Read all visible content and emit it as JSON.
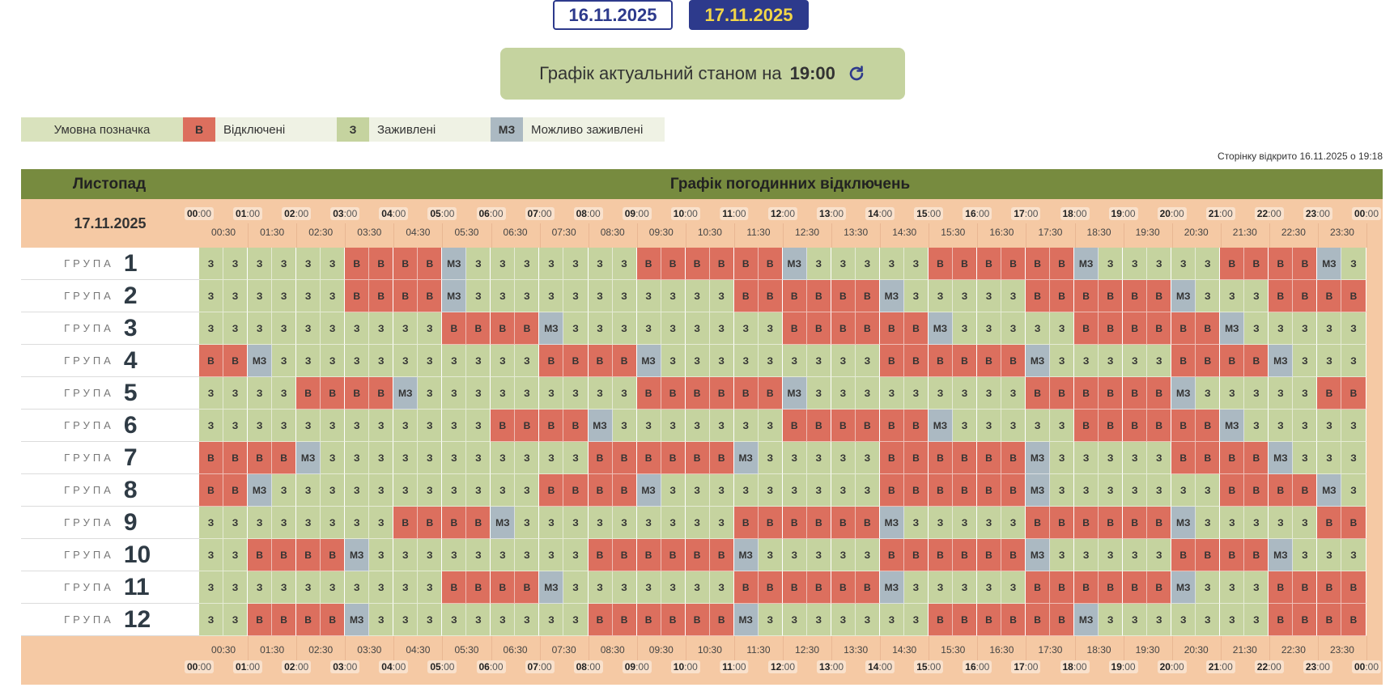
{
  "date_tabs": [
    {
      "label": "16.11.2025",
      "active": false
    },
    {
      "label": "17.11.2025",
      "active": true
    }
  ],
  "status": {
    "text": "Графік актуальний станом на",
    "time": "19:00",
    "icon": "refresh-icon"
  },
  "legend": {
    "title": "Умовна позначка",
    "items": [
      {
        "code": "В",
        "label": "Відключені",
        "color": "#dc6f5e"
      },
      {
        "code": "З",
        "label": "Заживлені",
        "color": "#c5d39f"
      },
      {
        "code": "МЗ",
        "label": "Можливо заживлені",
        "color": "#abb9c2"
      }
    ]
  },
  "opened_text": "Сторінку відкрито 16.11.2025 о 19:18",
  "schedule": {
    "month": "Листопад",
    "title": "Графік погодинних відключень",
    "date": "17.11.2025",
    "group_word": "ГРУПА",
    "hours": [
      "00",
      "01",
      "02",
      "03",
      "04",
      "05",
      "06",
      "07",
      "08",
      "09",
      "10",
      "11",
      "12",
      "13",
      "14",
      "15",
      "16",
      "17",
      "18",
      "19",
      "20",
      "21",
      "22",
      "23",
      "00"
    ],
    "halves": [
      "00:30",
      "01:30",
      "02:30",
      "03:30",
      "04:30",
      "05:30",
      "06:30",
      "07:30",
      "08:30",
      "09:30",
      "10:30",
      "11:30",
      "12:30",
      "13:30",
      "14:30",
      "15:30",
      "16:30",
      "17:30",
      "18:30",
      "19:30",
      "20:30",
      "21:30",
      "22:30",
      "23:30"
    ],
    "groups": [
      {
        "number": "1",
        "cells": [
          "З",
          "З",
          "З",
          "З",
          "З",
          "З",
          "В",
          "В",
          "В",
          "В",
          "МЗ",
          "З",
          "З",
          "З",
          "З",
          "З",
          "З",
          "З",
          "В",
          "В",
          "В",
          "В",
          "В",
          "В",
          "МЗ",
          "З",
          "З",
          "З",
          "З",
          "З",
          "В",
          "В",
          "В",
          "В",
          "В",
          "В",
          "МЗ",
          "З",
          "З",
          "З",
          "З",
          "З",
          "В",
          "В",
          "В",
          "В",
          "МЗ",
          "З"
        ]
      },
      {
        "number": "2",
        "cells": [
          "З",
          "З",
          "З",
          "З",
          "З",
          "З",
          "В",
          "В",
          "В",
          "В",
          "МЗ",
          "З",
          "З",
          "З",
          "З",
          "З",
          "З",
          "З",
          "З",
          "З",
          "З",
          "З",
          "В",
          "В",
          "В",
          "В",
          "В",
          "В",
          "МЗ",
          "З",
          "З",
          "З",
          "З",
          "З",
          "В",
          "В",
          "В",
          "В",
          "В",
          "В",
          "МЗ",
          "З",
          "З",
          "З",
          "В",
          "В",
          "В",
          "В"
        ]
      },
      {
        "number": "3",
        "cells": [
          "З",
          "З",
          "З",
          "З",
          "З",
          "З",
          "З",
          "З",
          "З",
          "З",
          "В",
          "В",
          "В",
          "В",
          "МЗ",
          "З",
          "З",
          "З",
          "З",
          "З",
          "З",
          "З",
          "З",
          "З",
          "В",
          "В",
          "В",
          "В",
          "В",
          "В",
          "МЗ",
          "З",
          "З",
          "З",
          "З",
          "З",
          "В",
          "В",
          "В",
          "В",
          "В",
          "В",
          "МЗ",
          "З",
          "З",
          "З",
          "З",
          "З"
        ]
      },
      {
        "number": "4",
        "cells": [
          "В",
          "В",
          "МЗ",
          "З",
          "З",
          "З",
          "З",
          "З",
          "З",
          "З",
          "З",
          "З",
          "З",
          "З",
          "В",
          "В",
          "В",
          "В",
          "МЗ",
          "З",
          "З",
          "З",
          "З",
          "З",
          "З",
          "З",
          "З",
          "З",
          "В",
          "В",
          "В",
          "В",
          "В",
          "В",
          "МЗ",
          "З",
          "З",
          "З",
          "З",
          "З",
          "В",
          "В",
          "В",
          "В",
          "МЗ",
          "З",
          "З",
          "З"
        ]
      },
      {
        "number": "5",
        "cells": [
          "З",
          "З",
          "З",
          "З",
          "В",
          "В",
          "В",
          "В",
          "МЗ",
          "З",
          "З",
          "З",
          "З",
          "З",
          "З",
          "З",
          "З",
          "З",
          "В",
          "В",
          "В",
          "В",
          "В",
          "В",
          "МЗ",
          "З",
          "З",
          "З",
          "З",
          "З",
          "З",
          "З",
          "З",
          "З",
          "В",
          "В",
          "В",
          "В",
          "В",
          "В",
          "МЗ",
          "З",
          "З",
          "З",
          "З",
          "З",
          "В",
          "В"
        ]
      },
      {
        "number": "6",
        "cells": [
          "З",
          "З",
          "З",
          "З",
          "З",
          "З",
          "З",
          "З",
          "З",
          "З",
          "З",
          "З",
          "В",
          "В",
          "В",
          "В",
          "МЗ",
          "З",
          "З",
          "З",
          "З",
          "З",
          "З",
          "З",
          "В",
          "В",
          "В",
          "В",
          "В",
          "В",
          "МЗ",
          "З",
          "З",
          "З",
          "З",
          "З",
          "В",
          "В",
          "В",
          "В",
          "В",
          "В",
          "МЗ",
          "З",
          "З",
          "З",
          "З",
          "З"
        ]
      },
      {
        "number": "7",
        "cells": [
          "В",
          "В",
          "В",
          "В",
          "МЗ",
          "З",
          "З",
          "З",
          "З",
          "З",
          "З",
          "З",
          "З",
          "З",
          "З",
          "З",
          "В",
          "В",
          "В",
          "В",
          "В",
          "В",
          "МЗ",
          "З",
          "З",
          "З",
          "З",
          "З",
          "В",
          "В",
          "В",
          "В",
          "В",
          "В",
          "МЗ",
          "З",
          "З",
          "З",
          "З",
          "З",
          "В",
          "В",
          "В",
          "В",
          "МЗ",
          "З",
          "З",
          "З"
        ]
      },
      {
        "number": "8",
        "cells": [
          "В",
          "В",
          "МЗ",
          "З",
          "З",
          "З",
          "З",
          "З",
          "З",
          "З",
          "З",
          "З",
          "З",
          "З",
          "В",
          "В",
          "В",
          "В",
          "МЗ",
          "З",
          "З",
          "З",
          "З",
          "З",
          "З",
          "З",
          "З",
          "З",
          "В",
          "В",
          "В",
          "В",
          "В",
          "В",
          "МЗ",
          "З",
          "З",
          "З",
          "З",
          "З",
          "З",
          "З",
          "В",
          "В",
          "В",
          "В",
          "МЗ",
          "З"
        ]
      },
      {
        "number": "9",
        "cells": [
          "З",
          "З",
          "З",
          "З",
          "З",
          "З",
          "З",
          "З",
          "В",
          "В",
          "В",
          "В",
          "МЗ",
          "З",
          "З",
          "З",
          "З",
          "З",
          "З",
          "З",
          "З",
          "З",
          "В",
          "В",
          "В",
          "В",
          "В",
          "В",
          "МЗ",
          "З",
          "З",
          "З",
          "З",
          "З",
          "В",
          "В",
          "В",
          "В",
          "В",
          "В",
          "МЗ",
          "З",
          "З",
          "З",
          "З",
          "З",
          "В",
          "В"
        ]
      },
      {
        "number": "10",
        "cells": [
          "З",
          "З",
          "В",
          "В",
          "В",
          "В",
          "МЗ",
          "З",
          "З",
          "З",
          "З",
          "З",
          "З",
          "З",
          "З",
          "З",
          "В",
          "В",
          "В",
          "В",
          "В",
          "В",
          "МЗ",
          "З",
          "З",
          "З",
          "З",
          "З",
          "В",
          "В",
          "В",
          "В",
          "В",
          "В",
          "МЗ",
          "З",
          "З",
          "З",
          "З",
          "З",
          "В",
          "В",
          "В",
          "В",
          "МЗ",
          "З",
          "З",
          "З"
        ]
      },
      {
        "number": "11",
        "cells": [
          "З",
          "З",
          "З",
          "З",
          "З",
          "З",
          "З",
          "З",
          "З",
          "З",
          "В",
          "В",
          "В",
          "В",
          "МЗ",
          "З",
          "З",
          "З",
          "З",
          "З",
          "З",
          "З",
          "В",
          "В",
          "В",
          "В",
          "В",
          "В",
          "МЗ",
          "З",
          "З",
          "З",
          "З",
          "З",
          "В",
          "В",
          "В",
          "В",
          "В",
          "В",
          "МЗ",
          "З",
          "З",
          "З",
          "В",
          "В",
          "В",
          "В"
        ]
      },
      {
        "number": "12",
        "cells": [
          "З",
          "З",
          "В",
          "В",
          "В",
          "В",
          "МЗ",
          "З",
          "З",
          "З",
          "З",
          "З",
          "З",
          "З",
          "З",
          "З",
          "В",
          "В",
          "В",
          "В",
          "В",
          "В",
          "МЗ",
          "З",
          "З",
          "З",
          "З",
          "З",
          "З",
          "З",
          "В",
          "В",
          "В",
          "В",
          "В",
          "В",
          "МЗ",
          "З",
          "З",
          "З",
          "З",
          "З",
          "З",
          "З",
          "В",
          "В",
          "В",
          "В"
        ]
      }
    ]
  }
}
